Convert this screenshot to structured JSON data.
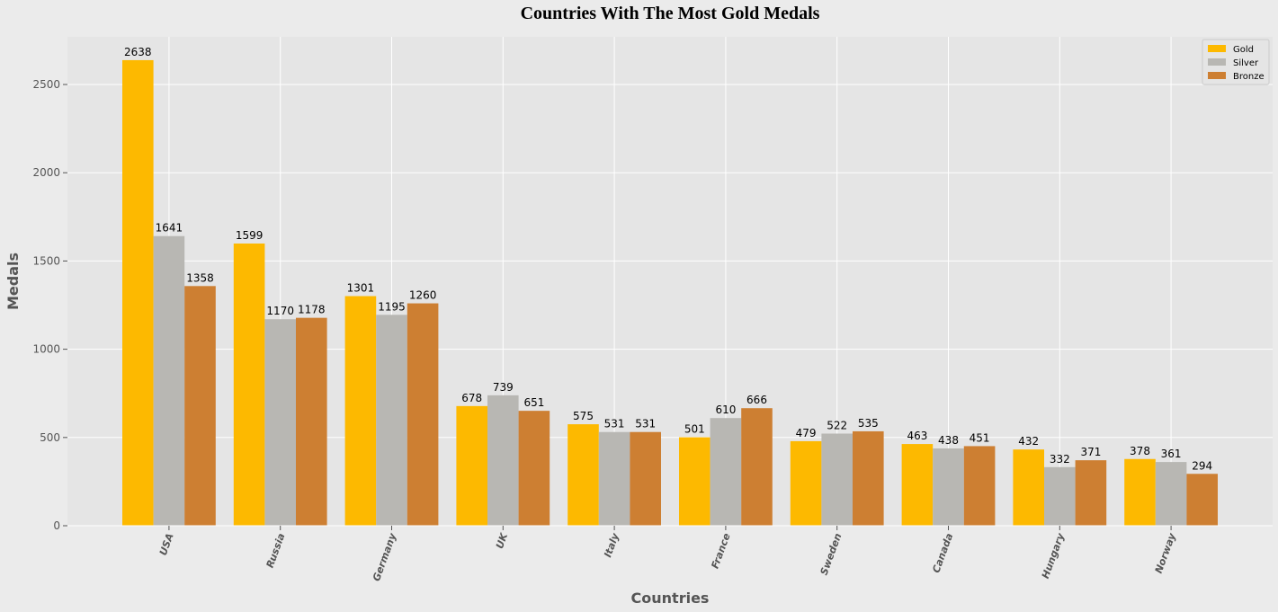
{
  "chart_data": {
    "type": "bar",
    "title": "Countries With The Most Gold Medals",
    "xlabel": "Countries",
    "ylabel": "Medals",
    "categories": [
      "USA",
      "Russia",
      "Germany",
      "UK",
      "Italy",
      "France",
      "Sweden",
      "Canada",
      "Hungary",
      "Norway"
    ],
    "series": [
      {
        "name": "Gold",
        "color": "#fdb900",
        "values": [
          2638,
          1599,
          1301,
          678,
          575,
          501,
          479,
          463,
          432,
          378
        ]
      },
      {
        "name": "Silver",
        "color": "#b8b7b3",
        "values": [
          1641,
          1170,
          1195,
          739,
          531,
          610,
          522,
          438,
          332,
          361
        ]
      },
      {
        "name": "Bronze",
        "color": "#cd7f32",
        "values": [
          1358,
          1178,
          1260,
          651,
          531,
          666,
          535,
          451,
          371,
          294
        ]
      }
    ],
    "yticks": [
      "0",
      "500",
      "1000",
      "1500",
      "2000",
      "2500"
    ],
    "ylim": [
      0,
      2770
    ],
    "grid": true,
    "legend_position": "top-right",
    "plot_background": "#e5e5e5",
    "grid_color": "#ffffff"
  }
}
